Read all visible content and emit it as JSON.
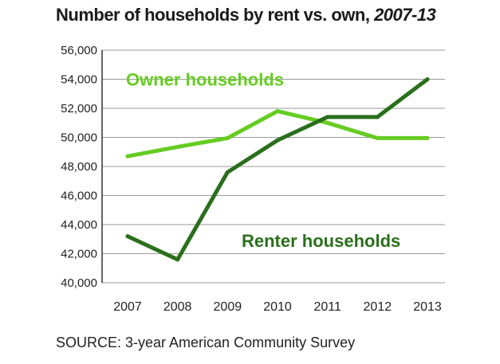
{
  "title": {
    "main": "Number of households by rent vs. own,",
    "years": "2007-13"
  },
  "source": "SOURCE: 3-year American Community Survey",
  "chart_data": {
    "type": "line",
    "title": "Number of households by rent vs. own, 2007-13",
    "xlabel": "",
    "ylabel": "",
    "x": [
      "2007",
      "2008",
      "2009",
      "2010",
      "2011",
      "2012",
      "2013"
    ],
    "ylim": [
      40000,
      56000
    ],
    "yticks": [
      40000,
      42000,
      44000,
      46000,
      48000,
      50000,
      52000,
      54000,
      56000
    ],
    "ytick_labels": [
      "40,000",
      "42,000",
      "44,000",
      "46,000",
      "48,000",
      "50,000",
      "52,000",
      "54,000",
      "56,000"
    ],
    "grid": "horizontal",
    "series": [
      {
        "name": "Owner households",
        "color": "#66cc22",
        "values": [
          48700,
          49350,
          49950,
          51800,
          51000,
          49950,
          49950
        ],
        "label_anchor_year": "2007",
        "label_anchor_value": 54000
      },
      {
        "name": "Renter households",
        "color": "#2a6f1c",
        "values": [
          43200,
          41600,
          47600,
          49800,
          51400,
          51400,
          54000
        ],
        "label_anchor_year": "2011",
        "label_anchor_value": 42900
      }
    ]
  }
}
